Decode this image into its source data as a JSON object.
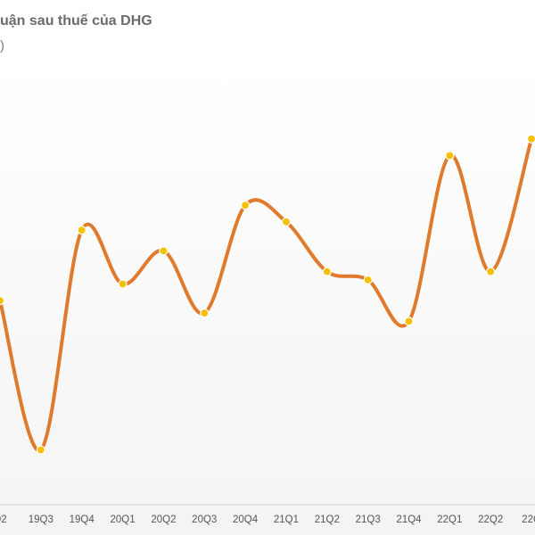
{
  "header": {
    "title": "uận sau thuế của DHG",
    "subtitle": ")"
  },
  "colors": {
    "line": "#e07b2e",
    "point": "#f5c000",
    "axis": "#cfcfcf",
    "tick_text": "#555555"
  },
  "chart_data": {
    "type": "line",
    "title": "uận sau thuế của DHG",
    "categories": [
      "Q2",
      "19Q3",
      "19Q4",
      "20Q1",
      "20Q2",
      "20Q3",
      "20Q4",
      "21Q1",
      "21Q2",
      "21Q3",
      "21Q4",
      "22Q1",
      "22Q2",
      "22Q"
    ],
    "series": [
      {
        "values": [
          49,
          13,
          66,
          53,
          61,
          46,
          72,
          68,
          56,
          54,
          44,
          84,
          56,
          88
        ]
      }
    ],
    "ylim": [
      0,
      100
    ],
    "xlabel": "",
    "ylabel": "",
    "grid": false
  }
}
